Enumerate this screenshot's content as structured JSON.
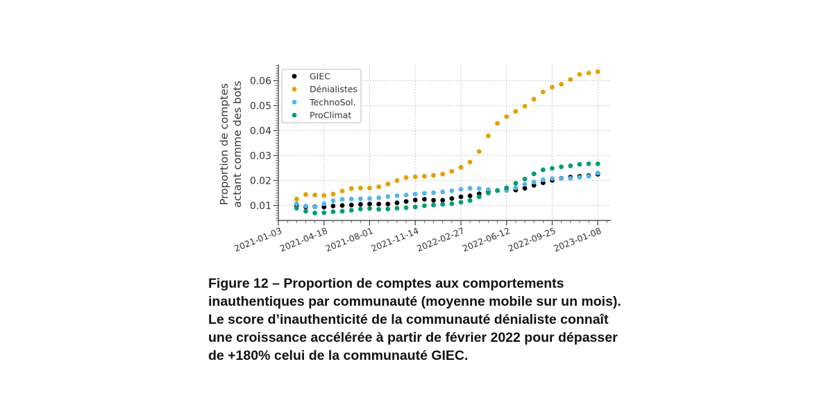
{
  "chart_data": {
    "type": "scatter",
    "ylabel_lines": [
      "Proportion de comptes",
      "actant comme des bots"
    ],
    "xlabel": "",
    "ylim": [
      0.004,
      0.0665
    ],
    "xlim": [
      "2021-01-03",
      "2023-02-07"
    ],
    "yticks": [
      0.01,
      0.02,
      0.03,
      0.04,
      0.05,
      0.06
    ],
    "ytick_labels": [
      "0.01",
      "0.02",
      "0.03",
      "0.04",
      "0.05",
      "0.06"
    ],
    "xticks": [
      "2021-01-03",
      "2021-04-18",
      "2021-08-01",
      "2021-11-14",
      "2022-02-27",
      "2022-06-12",
      "2022-09-25",
      "2023-01-08"
    ],
    "grid": true,
    "legend_position": "top-left",
    "x": [
      "2021-02-14",
      "2021-03-07",
      "2021-03-28",
      "2021-04-18",
      "2021-05-09",
      "2021-05-30",
      "2021-06-20",
      "2021-07-11",
      "2021-08-01",
      "2021-08-22",
      "2021-09-12",
      "2021-10-03",
      "2021-10-24",
      "2021-11-14",
      "2021-12-05",
      "2021-12-26",
      "2022-01-16",
      "2022-02-06",
      "2022-02-27",
      "2022-03-20",
      "2022-04-10",
      "2022-05-01",
      "2022-05-22",
      "2022-06-12",
      "2022-07-03",
      "2022-07-24",
      "2022-08-14",
      "2022-09-04",
      "2022-09-25",
      "2022-10-16",
      "2022-11-06",
      "2022-11-27",
      "2022-12-18",
      "2023-01-08"
    ],
    "series": [
      {
        "name": "GIEC",
        "color": "#000000",
        "values": [
          0.01,
          0.0094,
          0.0095,
          0.0094,
          0.0098,
          0.01,
          0.0102,
          0.0105,
          0.0106,
          0.0106,
          0.0106,
          0.0111,
          0.0116,
          0.0122,
          0.0125,
          0.0121,
          0.0121,
          0.0128,
          0.0135,
          0.0139,
          0.0147,
          0.0155,
          0.016,
          0.0163,
          0.0162,
          0.0169,
          0.0181,
          0.0191,
          0.0201,
          0.0209,
          0.0214,
          0.0217,
          0.022,
          0.0225
        ]
      },
      {
        "name": "Dénialistes",
        "color": "#E69F00",
        "values": [
          0.0126,
          0.0144,
          0.0142,
          0.014,
          0.0146,
          0.0158,
          0.0168,
          0.017,
          0.017,
          0.0175,
          0.0186,
          0.02,
          0.0212,
          0.0215,
          0.0217,
          0.0221,
          0.0226,
          0.0237,
          0.0253,
          0.0274,
          0.0316,
          0.0379,
          0.0429,
          0.0456,
          0.0477,
          0.0498,
          0.0526,
          0.0555,
          0.0574,
          0.0586,
          0.0605,
          0.0625,
          0.0631,
          0.0636
        ]
      },
      {
        "name": "TechnoSol.",
        "color": "#56B4E9",
        "values": [
          0.0107,
          0.0098,
          0.0094,
          0.0107,
          0.0119,
          0.0125,
          0.0126,
          0.0127,
          0.0128,
          0.0131,
          0.0136,
          0.0139,
          0.0142,
          0.0146,
          0.0149,
          0.0151,
          0.0155,
          0.0159,
          0.0165,
          0.0169,
          0.0168,
          0.0164,
          0.016,
          0.016,
          0.0171,
          0.0185,
          0.0194,
          0.0203,
          0.0208,
          0.0208,
          0.0209,
          0.0213,
          0.0217,
          0.023
        ]
      },
      {
        "name": "ProClimat",
        "color": "#009E73",
        "values": [
          0.0089,
          0.0077,
          0.007,
          0.0071,
          0.0075,
          0.0077,
          0.0081,
          0.0086,
          0.0088,
          0.0085,
          0.0086,
          0.0089,
          0.0091,
          0.0094,
          0.0099,
          0.0102,
          0.0105,
          0.0107,
          0.0113,
          0.012,
          0.0135,
          0.015,
          0.016,
          0.0171,
          0.0189,
          0.0206,
          0.0227,
          0.0243,
          0.0249,
          0.0255,
          0.0259,
          0.0265,
          0.0267,
          0.0267
        ]
      }
    ]
  },
  "caption": {
    "lines": [
      "Figure 12 – Proportion de comptes aux comportements",
      "inauthentiques par communauté (moyenne mobile sur un mois).",
      "Le score d’inauthenticité de la communauté dénialiste connaît",
      "une croissance accélérée à partir de février 2022 pour dépasser",
      "de +180% celui de la communauté GIEC."
    ]
  }
}
